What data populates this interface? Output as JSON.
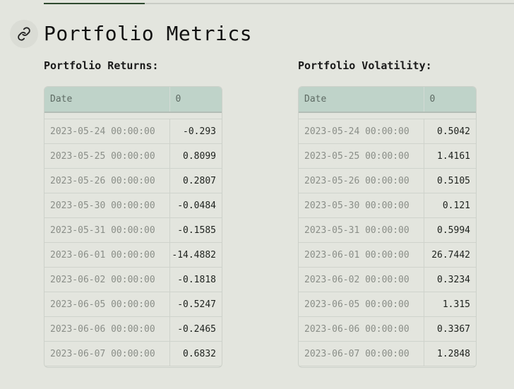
{
  "page": {
    "title": "Portfolio Metrics"
  },
  "returns": {
    "label": "Portfolio Returns:",
    "headers": [
      "Date",
      "0"
    ],
    "rows": [
      {
        "date": "2023-05-24 00:00:00",
        "value": "-0.293"
      },
      {
        "date": "2023-05-25 00:00:00",
        "value": "0.8099"
      },
      {
        "date": "2023-05-26 00:00:00",
        "value": "0.2807"
      },
      {
        "date": "2023-05-30 00:00:00",
        "value": "-0.0484"
      },
      {
        "date": "2023-05-31 00:00:00",
        "value": "-0.1585"
      },
      {
        "date": "2023-06-01 00:00:00",
        "value": "-14.4882"
      },
      {
        "date": "2023-06-02 00:00:00",
        "value": "-0.1818"
      },
      {
        "date": "2023-06-05 00:00:00",
        "value": "-0.5247"
      },
      {
        "date": "2023-06-06 00:00:00",
        "value": "-0.2465"
      },
      {
        "date": "2023-06-07 00:00:00",
        "value": "0.6832"
      }
    ]
  },
  "volatility": {
    "label": "Portfolio Volatility:",
    "headers": [
      "Date",
      "0"
    ],
    "rows": [
      {
        "date": "2023-05-24 00:00:00",
        "value": "0.5042"
      },
      {
        "date": "2023-05-25 00:00:00",
        "value": "1.4161"
      },
      {
        "date": "2023-05-26 00:00:00",
        "value": "0.5105"
      },
      {
        "date": "2023-05-30 00:00:00",
        "value": "0.121"
      },
      {
        "date": "2023-05-31 00:00:00",
        "value": "0.5994"
      },
      {
        "date": "2023-06-01 00:00:00",
        "value": "26.7442"
      },
      {
        "date": "2023-06-02 00:00:00",
        "value": "0.3234"
      },
      {
        "date": "2023-06-05 00:00:00",
        "value": "1.315"
      },
      {
        "date": "2023-06-06 00:00:00",
        "value": "0.3367"
      },
      {
        "date": "2023-06-07 00:00:00",
        "value": "1.2848"
      }
    ]
  },
  "icons": {
    "anchor": "link-icon"
  },
  "colors": {
    "background": "#e3e5de",
    "table_header": "#bfd3c9",
    "active_tab_rule": "#2f4a2f"
  }
}
